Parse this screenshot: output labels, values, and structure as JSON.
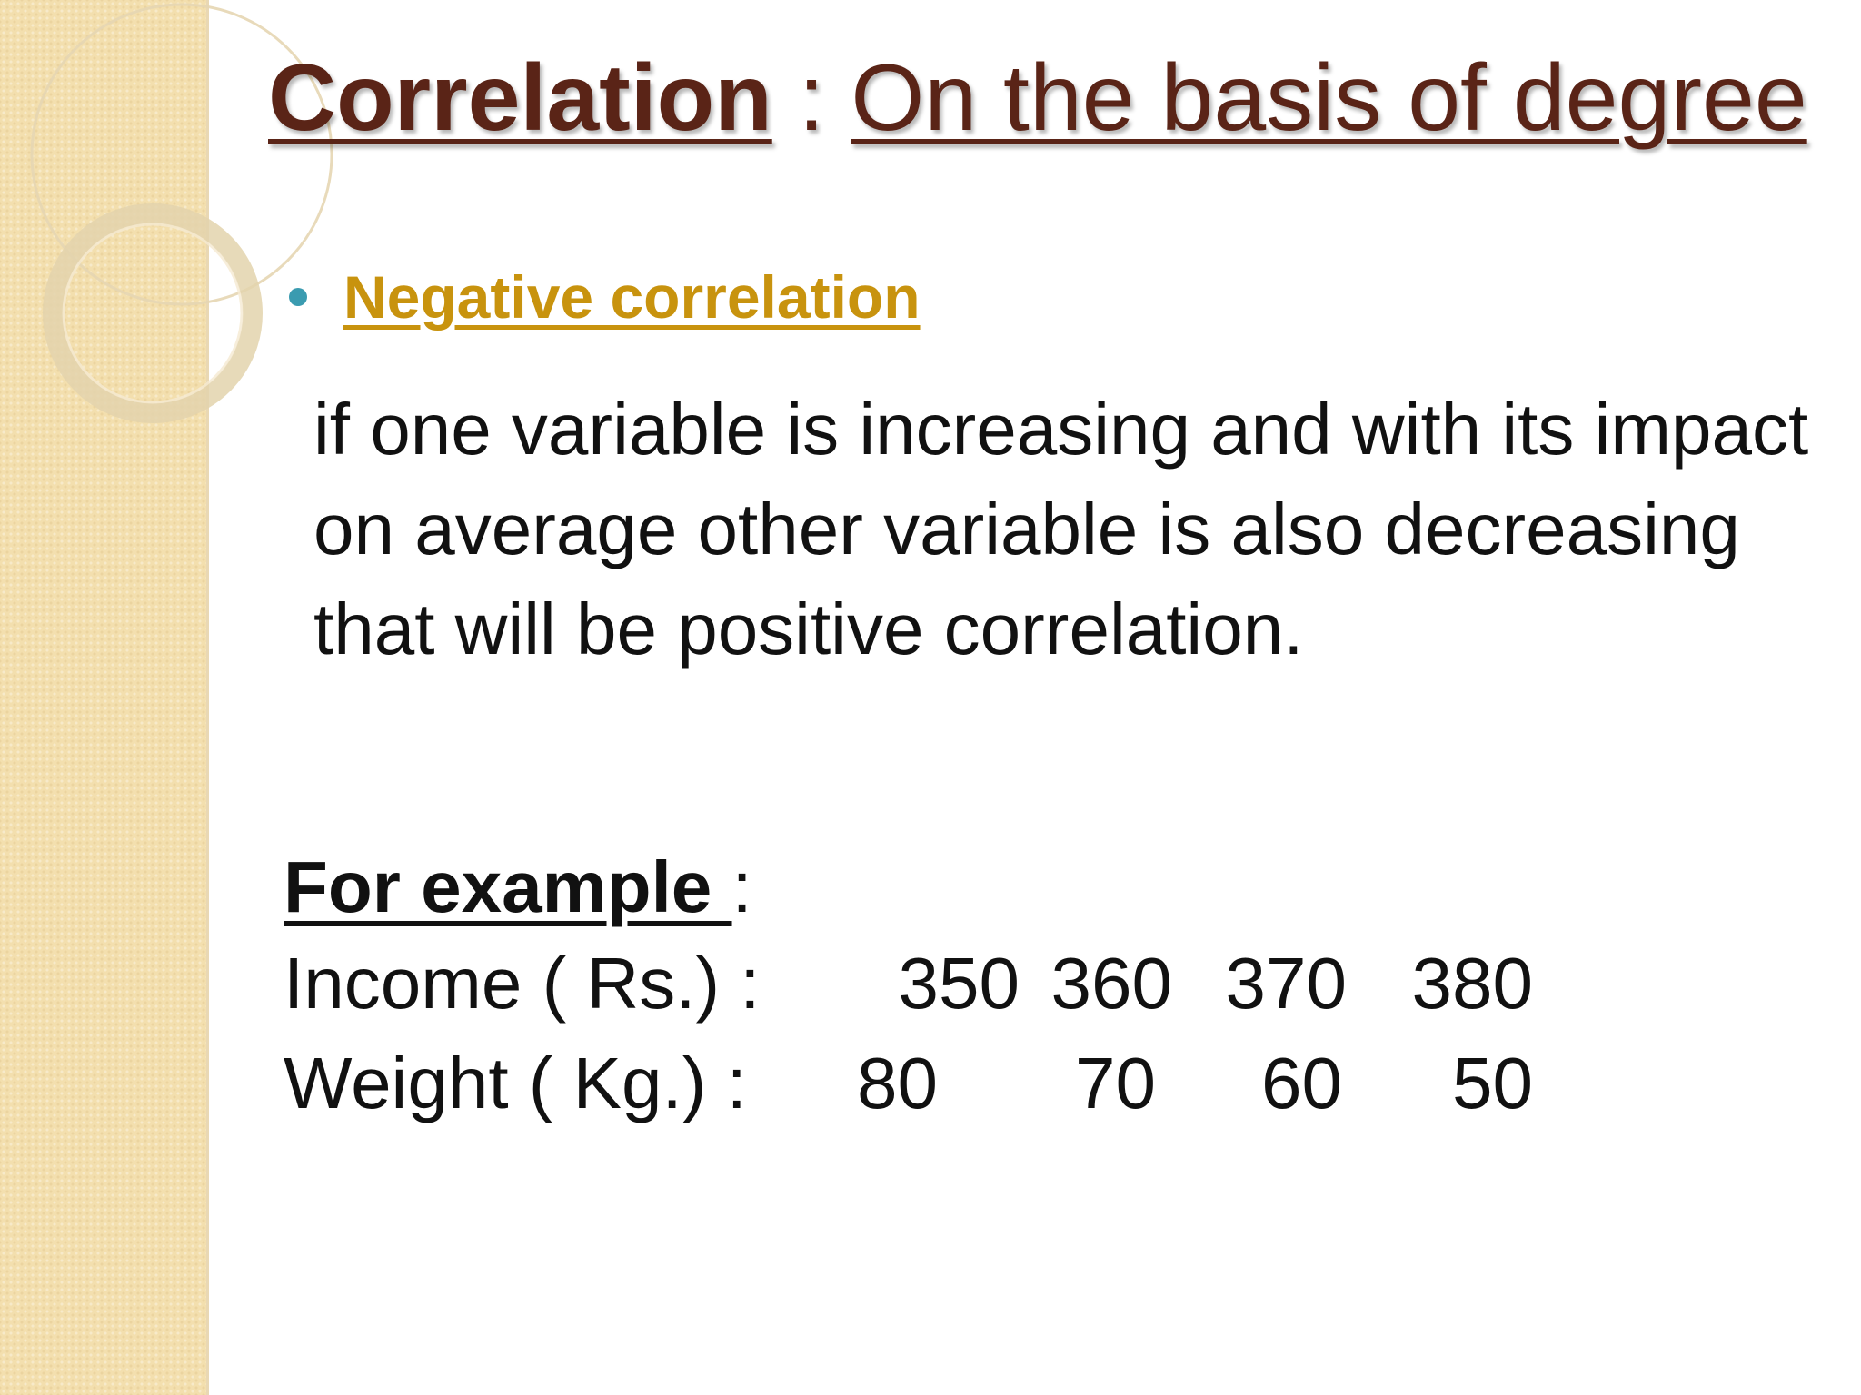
{
  "slide": {
    "title": {
      "main": "Correlation",
      "separator": " : ",
      "subtitle": "On the basis of degree"
    },
    "bullet": {
      "label": "Negative correlation"
    },
    "body": "if one variable is increasing and with its impact on average other variable is also decreasing  that will be positive correlation.",
    "example": {
      "label": "For example ",
      "colon": ":",
      "income_label": "Income ( Rs.) :",
      "income_values": [
        "350",
        "360",
        "370",
        "380"
      ],
      "weight_label": "Weight ( Kg.) :",
      "weight_values": [
        "80",
        "70",
        "60",
        "50"
      ]
    }
  },
  "colors": {
    "title": "#5a2417",
    "bullet_text": "#c8930e",
    "bullet_dot": "#3a9bb0",
    "sidebar": "#f3dfae",
    "body_text": "#111111"
  }
}
